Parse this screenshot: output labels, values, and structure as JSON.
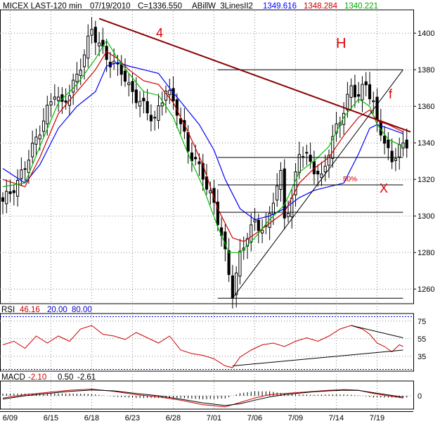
{
  "header": {
    "symbol": "MICEX LAST-120 min",
    "date": "07/19/2010",
    "close": "C=1336.550",
    "indicator": "ABillW_3LinesII2",
    "v1": "1349.616",
    "v2": "1348.284",
    "v3": "1340.221"
  },
  "rsi_header": {
    "label": "RSI",
    "value": "46.16",
    "low": "20.00",
    "high": "80.00"
  },
  "macd_header": {
    "label": "MACD",
    "v1": "-2.10",
    "v2": "0.50",
    "v3": "-2.61"
  },
  "annotations": {
    "wave": "4",
    "h": "H",
    "f": "f",
    "x": "X",
    "fib": "50%"
  },
  "colors": {
    "grid": "#888888",
    "candle": "#000000",
    "blue": "#0000ff",
    "red": "#cc0000",
    "green": "#00bb00",
    "trend": "#880000",
    "annot": "#dd0000",
    "rsi": "#cc0000",
    "panel_border": "#000000"
  },
  "chart_data": [
    {
      "type": "candlestick",
      "title": "MICEX LAST-120 min",
      "x_tick_labels": [
        "6/09",
        "6/15",
        "6/18",
        "6/23",
        "6/28",
        "7/01",
        "7/06",
        "7/09",
        "7/14",
        "7/19"
      ],
      "y_ticks": [
        1260,
        1280,
        1300,
        1320,
        1340,
        1360,
        1380,
        1400
      ],
      "ylim": [
        1252,
        1412
      ],
      "grid": true,
      "close_path": [
        [
          0,
          1308
        ],
        [
          4,
          1318
        ],
        [
          9,
          1342
        ],
        [
          14,
          1368
        ],
        [
          16,
          1360
        ],
        [
          20,
          1376
        ],
        [
          24,
          1402
        ],
        [
          27,
          1390
        ],
        [
          29,
          1384
        ],
        [
          32,
          1380
        ],
        [
          34,
          1370
        ],
        [
          38,
          1360
        ],
        [
          41,
          1352
        ],
        [
          44,
          1370
        ],
        [
          47,
          1358
        ],
        [
          50,
          1336
        ],
        [
          52,
          1330
        ],
        [
          54,
          1322
        ],
        [
          57,
          1306
        ],
        [
          59,
          1290
        ],
        [
          61,
          1268
        ],
        [
          62,
          1258
        ],
        [
          64,
          1278
        ],
        [
          66,
          1290
        ],
        [
          68,
          1296
        ],
        [
          71,
          1292
        ],
        [
          73,
          1310
        ],
        [
          75,
          1322
        ],
        [
          76,
          1300
        ],
        [
          78,
          1308
        ],
        [
          80,
          1336
        ],
        [
          82,
          1332
        ],
        [
          84,
          1326
        ],
        [
          86,
          1320
        ],
        [
          88,
          1336
        ],
        [
          90,
          1348
        ],
        [
          92,
          1358
        ],
        [
          94,
          1370
        ],
        [
          96,
          1366
        ],
        [
          98,
          1372
        ],
        [
          100,
          1362
        ],
        [
          101,
          1350
        ],
        [
          103,
          1342
        ],
        [
          105,
          1328
        ],
        [
          107,
          1340
        ],
        [
          108,
          1337
        ]
      ],
      "series": [
        {
          "name": "1349.616",
          "color": "#0000ff",
          "values": [
            [
              0,
              1326
            ],
            [
              6,
              1318
            ],
            [
              10,
              1328
            ],
            [
              15,
              1348
            ],
            [
              20,
              1360
            ],
            [
              25,
              1368
            ],
            [
              28,
              1382
            ],
            [
              31,
              1384
            ],
            [
              34,
              1382
            ],
            [
              38,
              1380
            ],
            [
              42,
              1378
            ],
            [
              45,
              1370
            ],
            [
              49,
              1360
            ],
            [
              53,
              1350
            ],
            [
              57,
              1336
            ],
            [
              60,
              1320
            ],
            [
              64,
              1304
            ],
            [
              68,
              1298
            ],
            [
              72,
              1300
            ],
            [
              76,
              1304
            ],
            [
              80,
              1310
            ],
            [
              84,
              1314
            ],
            [
              88,
              1316
            ],
            [
              92,
              1318
            ],
            [
              96,
              1334
            ],
            [
              99,
              1348
            ],
            [
              101,
              1350
            ],
            [
              104,
              1348
            ],
            [
              108,
              1345
            ]
          ]
        },
        {
          "name": "1348.284",
          "color": "#cc0000",
          "values": [
            [
              0,
              1320
            ],
            [
              6,
              1316
            ],
            [
              10,
              1332
            ],
            [
              15,
              1356
            ],
            [
              20,
              1368
            ],
            [
              25,
              1380
            ],
            [
              28,
              1390
            ],
            [
              31,
              1386
            ],
            [
              34,
              1380
            ],
            [
              38,
              1374
            ],
            [
              42,
              1372
            ],
            [
              46,
              1362
            ],
            [
              50,
              1346
            ],
            [
              54,
              1328
            ],
            [
              58,
              1304
            ],
            [
              62,
              1288
            ],
            [
              65,
              1286
            ],
            [
              68,
              1290
            ],
            [
              72,
              1296
            ],
            [
              76,
              1302
            ],
            [
              80,
              1318
            ],
            [
              84,
              1326
            ],
            [
              88,
              1332
            ],
            [
              92,
              1344
            ],
            [
              96,
              1354
            ],
            [
              99,
              1358
            ],
            [
              101,
              1352
            ],
            [
              104,
              1350
            ],
            [
              108,
              1346
            ]
          ]
        },
        {
          "name": "1340.221",
          "color": "#00bb00",
          "values": [
            [
              0,
              1316
            ],
            [
              6,
              1318
            ],
            [
              10,
              1338
            ],
            [
              15,
              1362
            ],
            [
              20,
              1372
            ],
            [
              25,
              1386
            ],
            [
              28,
              1396
            ],
            [
              31,
              1386
            ],
            [
              34,
              1378
            ],
            [
              38,
              1368
            ],
            [
              42,
              1366
            ],
            [
              46,
              1354
            ],
            [
              50,
              1334
            ],
            [
              54,
              1316
            ],
            [
              58,
              1294
            ],
            [
              61,
              1280
            ],
            [
              64,
              1280
            ],
            [
              68,
              1288
            ],
            [
              72,
              1298
            ],
            [
              76,
              1306
            ],
            [
              80,
              1324
            ],
            [
              84,
              1330
            ],
            [
              88,
              1338
            ],
            [
              92,
              1354
            ],
            [
              96,
              1364
            ],
            [
              99,
              1360
            ],
            [
              101,
              1350
            ],
            [
              104,
              1342
            ],
            [
              108,
              1338
            ]
          ]
        }
      ],
      "lines": [
        {
          "from": [
            26,
            1408
          ],
          "to": [
            110,
            1346
          ],
          "color": "#880000",
          "width": 2
        },
        {
          "from": [
            62,
            1255
          ],
          "to": [
            108,
            1380
          ],
          "color": "#000000",
          "width": 1
        }
      ],
      "levels": [
        {
          "y": 1380,
          "x0": 58,
          "x1": 108
        },
        {
          "y": 1332,
          "x0": 58,
          "x1": 108
        },
        {
          "y": 1317,
          "x0": 58,
          "x1": 108
        },
        {
          "y": 1302,
          "x0": 58,
          "x1": 108
        },
        {
          "y": 1255,
          "x0": 58,
          "x1": 108
        }
      ],
      "x_count": 110
    },
    {
      "type": "line",
      "title": "RSI",
      "y_ticks": [
        35,
        55,
        75
      ],
      "ylim": [
        18,
        82
      ],
      "levels": [
        20,
        80
      ],
      "values": [
        [
          0,
          48
        ],
        [
          3,
          52
        ],
        [
          6,
          44
        ],
        [
          9,
          58
        ],
        [
          12,
          50
        ],
        [
          15,
          58
        ],
        [
          18,
          52
        ],
        [
          21,
          66
        ],
        [
          24,
          70
        ],
        [
          27,
          60
        ],
        [
          30,
          58
        ],
        [
          33,
          54
        ],
        [
          36,
          62
        ],
        [
          39,
          56
        ],
        [
          42,
          50
        ],
        [
          45,
          58
        ],
        [
          48,
          42
        ],
        [
          51,
          38
        ],
        [
          54,
          36
        ],
        [
          57,
          32
        ],
        [
          60,
          24
        ],
        [
          62,
          22
        ],
        [
          64,
          34
        ],
        [
          67,
          42
        ],
        [
          70,
          48
        ],
        [
          73,
          50
        ],
        [
          76,
          46
        ],
        [
          79,
          52
        ],
        [
          82,
          56
        ],
        [
          85,
          52
        ],
        [
          88,
          58
        ],
        [
          91,
          66
        ],
        [
          94,
          70
        ],
        [
          97,
          66
        ],
        [
          99,
          60
        ],
        [
          101,
          50
        ],
        [
          103,
          46
        ],
        [
          105,
          40
        ],
        [
          107,
          48
        ],
        [
          108,
          46
        ]
      ],
      "lines": [
        {
          "from": [
            62,
            24
          ],
          "to": [
            108,
            42
          ],
          "color": "#000000"
        },
        {
          "from": [
            94,
            70
          ],
          "to": [
            108,
            56
          ],
          "color": "#000000"
        }
      ]
    },
    {
      "type": "histogram",
      "title": "MACD",
      "y_ticks": [
        0
      ],
      "ylim": [
        -6,
        6
      ],
      "values": [
        [
          0,
          -1
        ],
        [
          6,
          0.5
        ],
        [
          12,
          1.5
        ],
        [
          18,
          2.5
        ],
        [
          24,
          3
        ],
        [
          30,
          2
        ],
        [
          36,
          0.5
        ],
        [
          42,
          -0.5
        ],
        [
          48,
          -2
        ],
        [
          54,
          -4
        ],
        [
          60,
          -5
        ],
        [
          64,
          -3
        ],
        [
          68,
          -1
        ],
        [
          72,
          0.5
        ],
        [
          76,
          1
        ],
        [
          80,
          1.5
        ],
        [
          84,
          2
        ],
        [
          88,
          2.5
        ],
        [
          92,
          2.8
        ],
        [
          96,
          2.5
        ],
        [
          100,
          1
        ],
        [
          104,
          0
        ],
        [
          108,
          -1
        ]
      ],
      "signal": [
        [
          0,
          -1.5
        ],
        [
          6,
          0
        ],
        [
          12,
          1
        ],
        [
          18,
          2
        ],
        [
          24,
          2.6
        ],
        [
          30,
          2.2
        ],
        [
          36,
          1
        ],
        [
          42,
          0
        ],
        [
          48,
          -1.5
        ],
        [
          54,
          -3.2
        ],
        [
          60,
          -4.4
        ],
        [
          64,
          -3.6
        ],
        [
          68,
          -2
        ],
        [
          72,
          -0.5
        ],
        [
          76,
          0.5
        ],
        [
          80,
          1.2
        ],
        [
          84,
          1.8
        ],
        [
          88,
          2.2
        ],
        [
          92,
          2.5
        ],
        [
          96,
          2.4
        ],
        [
          100,
          1.4
        ],
        [
          104,
          0.4
        ],
        [
          108,
          -0.6
        ]
      ]
    }
  ]
}
